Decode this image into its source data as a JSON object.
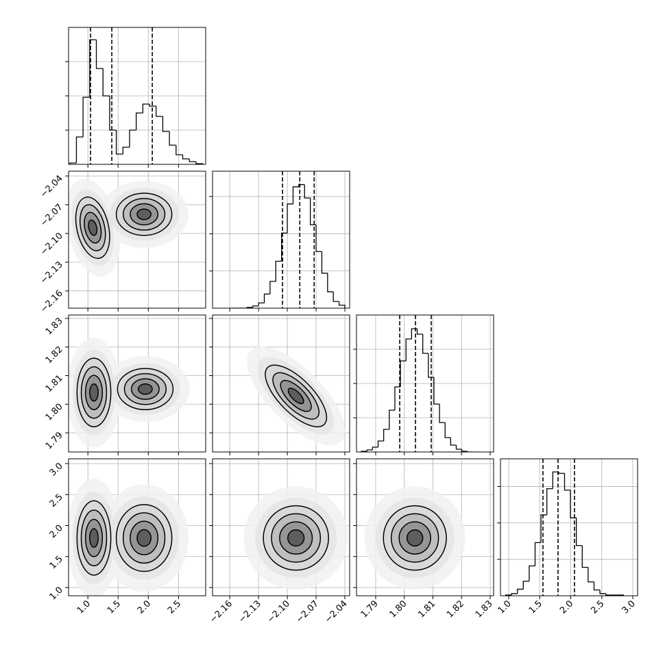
{
  "chart_data": {
    "type": "corner",
    "params": [
      {
        "xlim": [
          0.68,
          2.95
        ],
        "ticks": [
          {
            "value": 1,
            "label": "1.0"
          },
          1.5,
          {
            "value": 2,
            "label": "2.0"
          },
          2.5
        ]
      },
      {
        "xlim": [
          -2.178,
          -2.035
        ],
        "ticks": [
          {
            "value": -2.16,
            "label": "−2.16"
          },
          {
            "value": -2.13,
            "label": "−2.13"
          },
          {
            "value": -2.1,
            "label": "−2.10"
          },
          {
            "value": -2.07,
            "label": "−2.07"
          },
          {
            "value": -2.04,
            "label": "−2.04"
          }
        ]
      },
      {
        "xlim": [
          1.7833,
          1.8312
        ],
        "ticks": [
          1.79,
          {
            "value": 1.8,
            "label": "1.80"
          },
          1.81,
          1.82,
          1.83
        ]
      },
      {
        "xlim": [
          0.867,
          3.077
        ],
        "ticks": [
          {
            "value": 1,
            "label": "1.0"
          },
          1.5,
          {
            "value": 2,
            "label": "2.0"
          },
          2.5,
          {
            "value": 3,
            "label": "3.0"
          }
        ]
      }
    ],
    "histograms": [
      {
        "bins": [
          0.7,
          0.81,
          0.92,
          1.03,
          1.14,
          1.25,
          1.36,
          1.47,
          1.58,
          1.69,
          1.8,
          1.91,
          2.02,
          2.13,
          2.24,
          2.35,
          2.46,
          2.57,
          2.68,
          2.79,
          2.9
        ],
        "counts": [
          2,
          40,
          98,
          182,
          140,
          100,
          50,
          15,
          25,
          50,
          75,
          88,
          85,
          70,
          48,
          28,
          14,
          8,
          4,
          1
        ],
        "ylim": [
          0,
          200
        ],
        "yticks": [
          50,
          100,
          150
        ],
        "quantiles": [
          1.044,
          1.396,
          2.066
        ]
      },
      {
        "bins": [
          -2.16,
          -2.154,
          -2.148,
          -2.142,
          -2.136,
          -2.13,
          -2.124,
          -2.118,
          -2.112,
          -2.106,
          -2.1,
          -2.094,
          -2.088,
          -2.082,
          -2.076,
          -2.07,
          -2.064,
          -2.058,
          -2.052,
          -2.046,
          -2.04
        ],
        "counts": [
          0,
          0,
          0,
          1,
          3,
          7,
          19,
          36,
          63,
          101,
          140,
          163,
          166,
          148,
          112,
          76,
          47,
          22,
          9,
          4
        ],
        "ylim": [
          0,
          184
        ],
        "yticks": [
          50,
          100,
          150
        ],
        "quantiles": [
          -2.105,
          -2.087,
          -2.072
        ]
      },
      {
        "bins": [
          1.785,
          1.78695,
          1.7889,
          1.79085,
          1.7928,
          1.79475,
          1.7967,
          1.79865,
          1.8006,
          1.80255,
          1.8045,
          1.80645,
          1.8084,
          1.81035,
          1.8123,
          1.81425,
          1.8162,
          1.81815,
          1.8201,
          1.82205,
          1.824
        ],
        "counts": [
          1,
          3,
          7,
          16,
          33,
          61,
          95,
          133,
          165,
          180,
          172,
          144,
          109,
          70,
          43,
          21,
          10,
          4,
          1,
          0
        ],
        "ylim": [
          0,
          200
        ],
        "yticks": [
          50,
          100,
          150
        ],
        "quantiles": [
          1.7984,
          1.8039,
          1.8094
        ]
      },
      {
        "bins": [
          0.95,
          1.045,
          1.14,
          1.235,
          1.33,
          1.425,
          1.52,
          1.615,
          1.71,
          1.805,
          1.9,
          1.995,
          2.09,
          2.185,
          2.28,
          2.375,
          2.47,
          2.565,
          2.66,
          2.755,
          2.85
        ],
        "counts": [
          1,
          3,
          9,
          20,
          41,
          73,
          111,
          147,
          170,
          168,
          145,
          107,
          69,
          39,
          19,
          8,
          3,
          1,
          1,
          1
        ],
        "ylim": [
          0,
          188
        ],
        "yticks": [
          50,
          100,
          150
        ],
        "quantiles": [
          1.552,
          1.795,
          2.06
        ]
      }
    ],
    "panels": [
      {
        "clusters": [
          {
            "x": 1.08,
            "y": -2.094,
            "sx": 0.14,
            "sy": 0.016,
            "rho": -0.3
          },
          {
            "x": 1.93,
            "y": -2.08,
            "sx": 0.23,
            "sy": 0.011,
            "rho": 0
          }
        ]
      },
      {
        "clusters": [
          {
            "x": 1.1,
            "y": 1.8041,
            "sx": 0.14,
            "sy": 0.006,
            "rho": 0
          },
          {
            "x": 1.95,
            "y": 1.8053,
            "sx": 0.23,
            "sy": 0.0036,
            "rho": 0
          }
        ]
      },
      {
        "clusters": [
          {
            "x": -2.091,
            "y": 1.8029,
            "sx": 0.016,
            "sy": 0.0054,
            "rho": -0.7
          }
        ]
      },
      {
        "clusters": [
          {
            "x": 1.1,
            "y": 1.8,
            "sx": 0.14,
            "sy": 0.3,
            "rho": 0
          },
          {
            "x": 1.93,
            "y": 1.8,
            "sx": 0.23,
            "sy": 0.27,
            "rho": 0
          }
        ]
      },
      {
        "clusters": [
          {
            "x": -2.091,
            "y": 1.8,
            "sx": 0.017,
            "sy": 0.26,
            "rho": 0
          }
        ]
      },
      {
        "clusters": [
          {
            "x": 1.8037,
            "y": 1.8,
            "sx": 0.0055,
            "sy": 0.26,
            "rho": 0
          }
        ]
      }
    ]
  }
}
